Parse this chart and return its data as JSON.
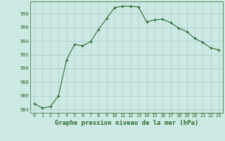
{
  "x": [
    0,
    1,
    2,
    3,
    4,
    5,
    6,
    7,
    8,
    9,
    10,
    11,
    12,
    13,
    14,
    15,
    16,
    17,
    18,
    19,
    20,
    21,
    22,
    23
  ],
  "y": [
    984.8,
    984.2,
    984.4,
    986.0,
    991.2,
    993.5,
    993.3,
    993.9,
    995.7,
    997.3,
    998.9,
    999.1,
    999.1,
    999.0,
    996.8,
    997.1,
    997.2,
    996.7,
    995.9,
    995.4,
    994.4,
    993.8,
    993.0,
    992.7
  ],
  "line_color": "#2d6a2d",
  "marker": "+",
  "marker_size": 3,
  "bg_color": "#cce9e4",
  "grid_color": "#aacccc",
  "xlabel": "Graphe pression niveau de la mer (hPa)",
  "ylabel_ticks": [
    984,
    986,
    988,
    990,
    992,
    994,
    996,
    998
  ],
  "xlim": [
    -0.5,
    23.5
  ],
  "ylim": [
    983.5,
    999.8
  ],
  "border_color": "#5a8a5a",
  "tick_fontsize": 5.0,
  "label_fontsize": 6.5
}
